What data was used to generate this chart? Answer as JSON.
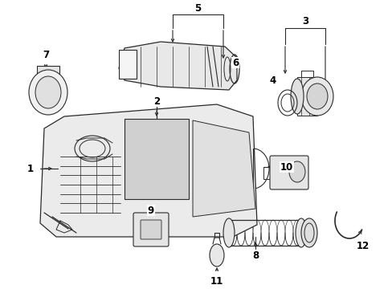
{
  "background_color": "#ffffff",
  "fig_width": 4.89,
  "fig_height": 3.6,
  "dpi": 100,
  "part_label_fontsize": 8.5,
  "line_color": "#2a2a2a",
  "label_color": "#000000"
}
